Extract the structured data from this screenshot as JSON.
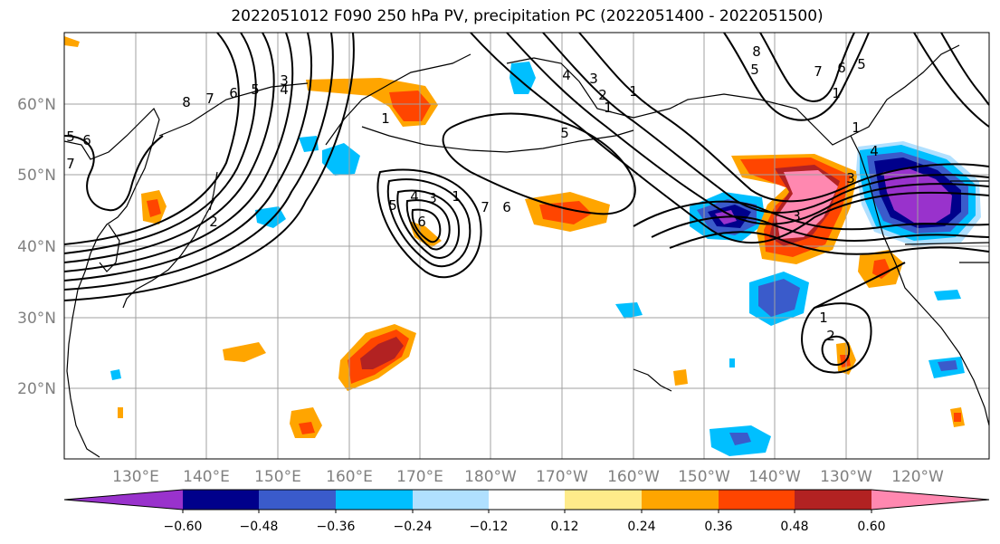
{
  "title": "2022051012 F090 250 hPa PV, precipitation PC (2022051400 - 2022051500)",
  "map": {
    "lat_labels": [
      "60°N",
      "50°N",
      "40°N",
      "30°N",
      "20°N"
    ],
    "lon_labels": [
      "130°E",
      "140°E",
      "150°E",
      "160°E",
      "170°E",
      "180°W",
      "170°W",
      "160°W",
      "150°W",
      "140°W",
      "130°W",
      "120°W"
    ],
    "contour_labels": [
      "8",
      "7",
      "6",
      "5",
      "4",
      "3",
      "2",
      "1",
      "5",
      "6",
      "7",
      "6",
      "5",
      "4",
      "3",
      "1",
      "7",
      "6",
      "5",
      "4",
      "3",
      "2",
      "1",
      "1",
      "3",
      "5",
      "1",
      "2",
      "1",
      "8",
      "7",
      "6",
      "5",
      "4",
      "3",
      "1"
    ]
  },
  "colorbar": {
    "colors": [
      "#9932CC",
      "#00008B",
      "#3A5BCB",
      "#00BFFF",
      "#B0E0FF",
      "#FFFFFF",
      "#FFEB8A",
      "#FFA500",
      "#FF4500",
      "#B22222",
      "#FF88B0"
    ],
    "tick_labels": [
      "−0.60",
      "−0.48",
      "−0.36",
      "−0.24",
      "−0.12",
      "0.12",
      "0.24",
      "0.36",
      "0.48",
      "0.60"
    ]
  }
}
